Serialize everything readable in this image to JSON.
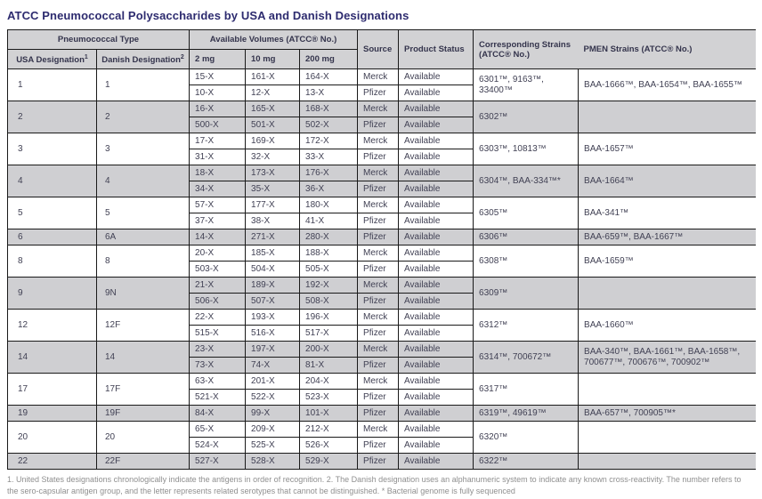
{
  "title": "ATCC Pneumococcal Polysaccharides by USA and Danish Designations",
  "table": {
    "headers": {
      "pneumococcal_type": "Pneumococcal Type",
      "usa": "USA Designation",
      "usa_sup": "1",
      "danish": "Danish Designation",
      "danish_sup": "2",
      "volumes": "Available Volumes (ATCC® No.)",
      "mg2": "2 mg",
      "mg10": "10 mg",
      "mg200": "200 mg",
      "source": "Source",
      "status": "Product Status",
      "strains": "Corresponding Strains (ATCC® No.)",
      "pmen": "PMEN Strains (ATCC® No.)"
    },
    "groups": [
      {
        "usa": "1",
        "danish": "1",
        "rows": [
          {
            "mg2": "15-X",
            "mg10": "161-X",
            "mg200": "164-X",
            "source": "Merck",
            "status": "Available"
          },
          {
            "mg2": "10-X",
            "mg10": "12-X",
            "mg200": "13-X",
            "source": "Pfizer",
            "status": "Available"
          }
        ],
        "strains": "6301™, 9163™, 33400™",
        "pmen": "BAA-1666™, BAA-1654™, BAA-1655™"
      },
      {
        "usa": "2",
        "danish": "2",
        "rows": [
          {
            "mg2": "16-X",
            "mg10": "165-X",
            "mg200": "168-X",
            "source": "Merck",
            "status": "Available"
          },
          {
            "mg2": "500-X",
            "mg10": "501-X",
            "mg200": "502-X",
            "source": "Pfizer",
            "status": "Available"
          }
        ],
        "strains": "6302™",
        "pmen": ""
      },
      {
        "usa": "3",
        "danish": "3",
        "rows": [
          {
            "mg2": "17-X",
            "mg10": "169-X",
            "mg200": "172-X",
            "source": "Merck",
            "status": "Available"
          },
          {
            "mg2": "31-X",
            "mg10": "32-X",
            "mg200": "33-X",
            "source": "Pfizer",
            "status": "Available"
          }
        ],
        "strains": "6303™, 10813™",
        "pmen": "BAA-1657™"
      },
      {
        "usa": "4",
        "danish": "4",
        "rows": [
          {
            "mg2": "18-X",
            "mg10": "173-X",
            "mg200": "176-X",
            "source": "Merck",
            "status": "Available"
          },
          {
            "mg2": "34-X",
            "mg10": "35-X",
            "mg200": "36-X",
            "source": "Pfizer",
            "status": "Available"
          }
        ],
        "strains": "6304™, BAA-334™*",
        "pmen": "BAA-1664™"
      },
      {
        "usa": "5",
        "danish": "5",
        "rows": [
          {
            "mg2": "57-X",
            "mg10": "177-X",
            "mg200": "180-X",
            "source": "Merck",
            "status": "Available"
          },
          {
            "mg2": "37-X",
            "mg10": "38-X",
            "mg200": "41-X",
            "source": "Pfizer",
            "status": "Available"
          }
        ],
        "strains": "6305™",
        "pmen": "BAA-341™"
      },
      {
        "usa": "6",
        "danish": "6A",
        "rows": [
          {
            "mg2": "14-X",
            "mg10": "271-X",
            "mg200": "280-X",
            "source": "Pfizer",
            "status": "Available"
          }
        ],
        "strains": "6306™",
        "pmen": "BAA-659™, BAA-1667™"
      },
      {
        "usa": "8",
        "danish": "8",
        "rows": [
          {
            "mg2": "20-X",
            "mg10": "185-X",
            "mg200": "188-X",
            "source": "Merck",
            "status": "Available"
          },
          {
            "mg2": "503-X",
            "mg10": "504-X",
            "mg200": "505-X",
            "source": "Pfizer",
            "status": "Available"
          }
        ],
        "strains": "6308™",
        "pmen": "BAA-1659™"
      },
      {
        "usa": "9",
        "danish": "9N",
        "rows": [
          {
            "mg2": "21-X",
            "mg10": "189-X",
            "mg200": "192-X",
            "source": "Merck",
            "status": "Available"
          },
          {
            "mg2": "506-X",
            "mg10": "507-X",
            "mg200": "508-X",
            "source": "Pfizer",
            "status": "Available"
          }
        ],
        "strains": "6309™",
        "pmen": ""
      },
      {
        "usa": "12",
        "danish": "12F",
        "rows": [
          {
            "mg2": "22-X",
            "mg10": "193-X",
            "mg200": "196-X",
            "source": "Merck",
            "status": "Available"
          },
          {
            "mg2": "515-X",
            "mg10": "516-X",
            "mg200": "517-X",
            "source": "Pfizer",
            "status": "Available"
          }
        ],
        "strains": "6312™",
        "pmen": "BAA-1660™"
      },
      {
        "usa": "14",
        "danish": "14",
        "rows": [
          {
            "mg2": "23-X",
            "mg10": "197-X",
            "mg200": "200-X",
            "source": "Merck",
            "status": "Available"
          },
          {
            "mg2": "73-X",
            "mg10": "74-X",
            "mg200": "81-X",
            "source": "Pfizer",
            "status": "Available"
          }
        ],
        "strains": "6314™, 700672™",
        "pmen": "BAA-340™, BAA-1661™, BAA-1658™, 700677™, 700676™, 700902™"
      },
      {
        "usa": "17",
        "danish": "17F",
        "rows": [
          {
            "mg2": "63-X",
            "mg10": "201-X",
            "mg200": "204-X",
            "source": "Merck",
            "status": "Available"
          },
          {
            "mg2": "521-X",
            "mg10": "522-X",
            "mg200": "523-X",
            "source": "Pfizer",
            "status": "Available"
          }
        ],
        "strains": "6317™",
        "pmen": ""
      },
      {
        "usa": "19",
        "danish": "19F",
        "rows": [
          {
            "mg2": "84-X",
            "mg10": "99-X",
            "mg200": "101-X",
            "source": "Pfizer",
            "status": "Available"
          }
        ],
        "strains": "6319™, 49619™",
        "pmen": "BAA-657™, 700905™*"
      },
      {
        "usa": "20",
        "danish": "20",
        "rows": [
          {
            "mg2": "65-X",
            "mg10": "209-X",
            "mg200": "212-X",
            "source": "Merck",
            "status": "Available"
          },
          {
            "mg2": "524-X",
            "mg10": "525-X",
            "mg200": "526-X",
            "source": "Pfizer",
            "status": "Available"
          }
        ],
        "strains": "6320™",
        "pmen": ""
      },
      {
        "usa": "22",
        "danish": "22F",
        "rows": [
          {
            "mg2": "527-X",
            "mg10": "528-X",
            "mg200": "529-X",
            "source": "Pfizer",
            "status": "Available"
          }
        ],
        "strains": "6322™",
        "pmen": ""
      }
    ]
  },
  "footnote": "1. United States designations chronologically indicate the antigens in order of recognition. 2. The Danish designation uses an alphanumeric system to indicate any known cross-reactivity. The number refers to the sero-capsular antigen group, and the letter represents related serotypes that cannot be distinguished. * Bacterial genome is fully sequenced",
  "colors": {
    "title": "#2d2b6f",
    "header_bg": "#d2d2d4",
    "row_shade": "#cfcfd2",
    "border": "#1a1a1a",
    "footnote_text": "#8f8f8f"
  }
}
